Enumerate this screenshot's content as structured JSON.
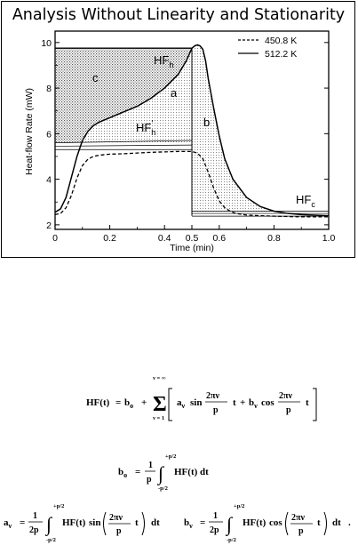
{
  "chart_data": {
    "type": "line",
    "title": "Analysis Without Linearity and Stationarity",
    "xlabel": "Time  (min)",
    "ylabel": "Heat-flow Rate  (mW)",
    "xlim": [
      0,
      1.0
    ],
    "ylim": [
      1.8,
      10.5
    ],
    "x_ticks": [
      0,
      0.2,
      0.4,
      0.5,
      0.6,
      0.8,
      1.0
    ],
    "x_tick_labels": [
      "0",
      "0.2",
      "0.4",
      "0.5",
      "0.6",
      "0.8",
      "1.0"
    ],
    "y_ticks": [
      2,
      4,
      6,
      8,
      10
    ],
    "y_tick_labels": [
      "2",
      "4",
      "6",
      "8",
      "10"
    ],
    "legend_position": "top-right",
    "series": [
      {
        "name": "450.8 K",
        "style": "dashed",
        "x": [
          0,
          0.02,
          0.04,
          0.06,
          0.08,
          0.1,
          0.12,
          0.14,
          0.16,
          0.18,
          0.2,
          0.25,
          0.3,
          0.35,
          0.4,
          0.45,
          0.5,
          0.52,
          0.54,
          0.56,
          0.58,
          0.6,
          0.62,
          0.64,
          0.66,
          0.7,
          0.75,
          0.8,
          0.9,
          1.0
        ],
        "values": [
          2.45,
          2.5,
          2.75,
          3.3,
          4.05,
          4.6,
          4.88,
          5.0,
          5.05,
          5.08,
          5.1,
          5.12,
          5.15,
          5.18,
          5.2,
          5.22,
          5.22,
          5.15,
          4.9,
          4.3,
          3.6,
          3.05,
          2.75,
          2.6,
          2.5,
          2.43,
          2.4,
          2.38,
          2.35,
          2.35
        ]
      },
      {
        "name": "512.2 K",
        "style": "solid",
        "x": [
          0,
          0.02,
          0.04,
          0.06,
          0.08,
          0.1,
          0.12,
          0.14,
          0.16,
          0.18,
          0.2,
          0.25,
          0.3,
          0.35,
          0.4,
          0.45,
          0.48,
          0.5,
          0.51,
          0.52,
          0.53,
          0.54,
          0.55,
          0.56,
          0.58,
          0.6,
          0.62,
          0.65,
          0.7,
          0.75,
          0.8,
          0.85,
          0.9,
          1.0
        ],
        "values": [
          2.55,
          2.7,
          3.2,
          4.1,
          5.0,
          5.7,
          6.1,
          6.35,
          6.5,
          6.6,
          6.7,
          6.95,
          7.2,
          7.55,
          8.0,
          8.6,
          9.2,
          9.75,
          9.85,
          9.9,
          9.85,
          9.7,
          9.2,
          8.4,
          7.1,
          5.9,
          4.9,
          4.0,
          3.2,
          2.8,
          2.6,
          2.5,
          2.45,
          2.4
        ]
      }
    ],
    "annotations": {
      "hf_h_label": "HF",
      "hf_h_sub": "h",
      "hf_h_prime_label": "HF",
      "hf_h_prime_sub": "h",
      "hf_h_prime_mark": "'",
      "hf_c_label": "HF",
      "hf_c_sub": "c",
      "region_a": "a",
      "region_b": "b",
      "region_c": "c"
    },
    "reference_levels": {
      "hf_h": 9.75,
      "hf_c": 2.5,
      "hf_h_prime": [
        5.3,
        5.45,
        5.6
      ],
      "step_time": 0.5
    }
  },
  "equations": {
    "fourier_lhs": "HF(t)",
    "fourier_rhs_b0": "b",
    "fourier_b0_sub": "o",
    "sum_upper": "ν = ∞",
    "sum_lower": "ν = 1",
    "sum_symbol": "Σ",
    "term_a": "a",
    "term_a_sub": "ν",
    "sin_fn": "sin",
    "cos_fn": "cos",
    "term_b": "b",
    "term_b_sub": "ν",
    "frac_num": "2πν",
    "frac_den": "p",
    "t_var": "t",
    "b0_lhs": "b",
    "b0_sub": "o",
    "one": "1",
    "p": "p",
    "two_p": "2p",
    "int_upper": "+p/2",
    "int_lower": "-p/2",
    "integrand": "HF(t) dt",
    "hf_t": "HF(t)",
    "dt": "dt",
    "av_lhs": "a",
    "av_sub": "ν",
    "bv_lhs": "b",
    "bv_sub": "ν",
    "equals": "=",
    "plus": "+",
    "period": "."
  }
}
